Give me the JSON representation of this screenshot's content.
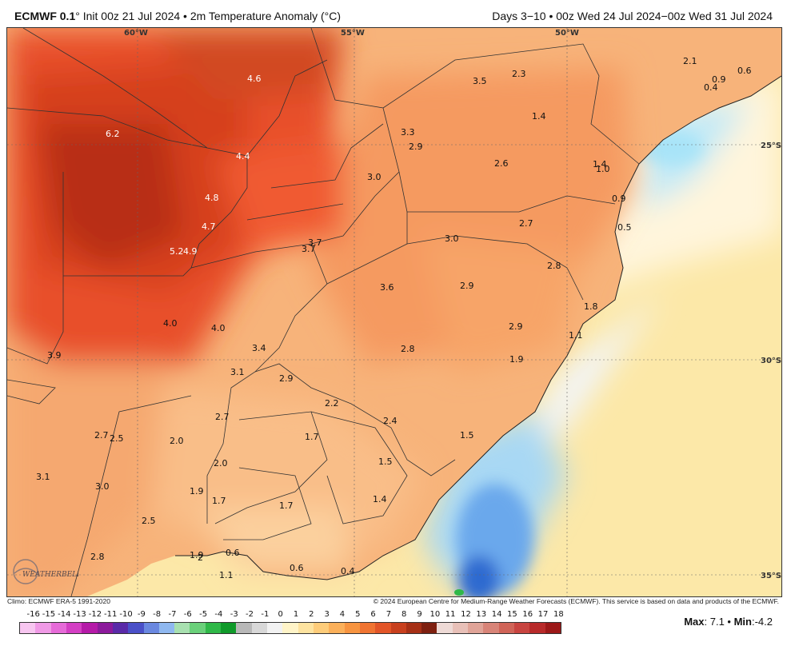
{
  "header": {
    "model": "ECMWF 0.1",
    "init_text": "° Init 00z 21 Jul 2024 • 2m Temperature Anomaly (°C)",
    "valid_text": "Days 3−10 • 00z Wed 24 Jul 2024−00z Wed 31 Jul 2024"
  },
  "map": {
    "gridlines": {
      "longitudes": [
        "60°W",
        "55°W",
        "50°W"
      ],
      "latitudes": [
        "25°S",
        "30°S",
        "35°S"
      ]
    },
    "values": [
      {
        "text": "4.6"
      },
      {
        "text": "6.2"
      },
      {
        "text": "4.4"
      },
      {
        "text": "4.8"
      },
      {
        "text": "4.7"
      },
      {
        "text": "5.2"
      },
      {
        "text": "4.9"
      },
      {
        "text": "3.7"
      },
      {
        "text": "3.7"
      },
      {
        "text": "3.3"
      },
      {
        "text": "2.9"
      },
      {
        "text": "3.0"
      },
      {
        "text": "3.5"
      },
      {
        "text": "2.3"
      },
      {
        "text": "1.4"
      },
      {
        "text": "2.6"
      },
      {
        "text": "2.1"
      },
      {
        "text": "0.9"
      },
      {
        "text": "0.4"
      },
      {
        "text": "0.6"
      },
      {
        "text": "1.4"
      },
      {
        "text": "1.0"
      },
      {
        "text": "0.9"
      },
      {
        "text": "2.7"
      },
      {
        "text": "0.5"
      },
      {
        "text": "3.0"
      },
      {
        "text": "2.8"
      },
      {
        "text": "3.6"
      },
      {
        "text": "2.9"
      },
      {
        "text": "1.8"
      },
      {
        "text": "4.0"
      },
      {
        "text": "4.0"
      },
      {
        "text": "2.9"
      },
      {
        "text": "1.1"
      },
      {
        "text": "3.4"
      },
      {
        "text": "2.8"
      },
      {
        "text": "3.9"
      },
      {
        "text": "1.9"
      },
      {
        "text": "3.1"
      },
      {
        "text": "2.9"
      },
      {
        "text": "2.2"
      },
      {
        "text": "2.7"
      },
      {
        "text": "2.4"
      },
      {
        "text": "2.7"
      },
      {
        "text": "2.5"
      },
      {
        "text": "2.0"
      },
      {
        "text": "1.7"
      },
      {
        "text": "1.5"
      },
      {
        "text": "2.0"
      },
      {
        "text": "1.5"
      },
      {
        "text": "3.1"
      },
      {
        "text": "3.0"
      },
      {
        "text": "1.9"
      },
      {
        "text": "1.7"
      },
      {
        "text": "1.7"
      },
      {
        "text": "1.4"
      },
      {
        "text": "2.5"
      },
      {
        "text": "2.8"
      },
      {
        "text": "1.9"
      },
      {
        "text": "2"
      },
      {
        "text": "0.6"
      },
      {
        "text": "0.6"
      },
      {
        "text": "0.4"
      },
      {
        "text": "1.1"
      }
    ]
  },
  "footer": {
    "climo": "Climo: ECMWF ERA-5 1991-2020",
    "copyright": "© 2024 European Centre for Medium-Range Weather Forecasts (ECMWF). This service is based on data and products of the ECMWF.",
    "logo_text": "WEATHERBELL"
  },
  "colorbar": {
    "labels": [
      "-16",
      "-15",
      "-14",
      "-13",
      "-12",
      "-11",
      "-10",
      "-9",
      "-8",
      "-7",
      "-6",
      "-5",
      "-4",
      "-3",
      "-2",
      "-1",
      "0",
      "1",
      "2",
      "3",
      "4",
      "5",
      "6",
      "7",
      "8",
      "9",
      "10",
      "11",
      "12",
      "13",
      "14",
      "15",
      "16",
      "17",
      "18"
    ],
    "colors": [
      "#f7c6f0",
      "#f09ae6",
      "#e66bd8",
      "#d43fc4",
      "#b51aa8",
      "#8c1a9c",
      "#5a2aa8",
      "#4a50c8",
      "#6a88e0",
      "#8fb8f0",
      "#a8e0b0",
      "#6ad07a",
      "#2fb848",
      "#0f9a2a",
      "#b8b8b8",
      "#d8d8d8",
      "#f2f2f2",
      "#fff4c8",
      "#fde3a0",
      "#fdcc7a",
      "#fbb05a",
      "#f79440",
      "#f07432",
      "#e25528",
      "#c8401e",
      "#a63016",
      "#7e2010",
      "#eedad6",
      "#e8c0b8",
      "#e0a498",
      "#d88478",
      "#d06458",
      "#c84440",
      "#b82a2a",
      "#9c1818"
    ]
  },
  "summary": {
    "max_label": "Max",
    "max_value": ": 7.1",
    "sep": " • ",
    "min_label": "Min",
    "min_value": ":-4.2"
  }
}
